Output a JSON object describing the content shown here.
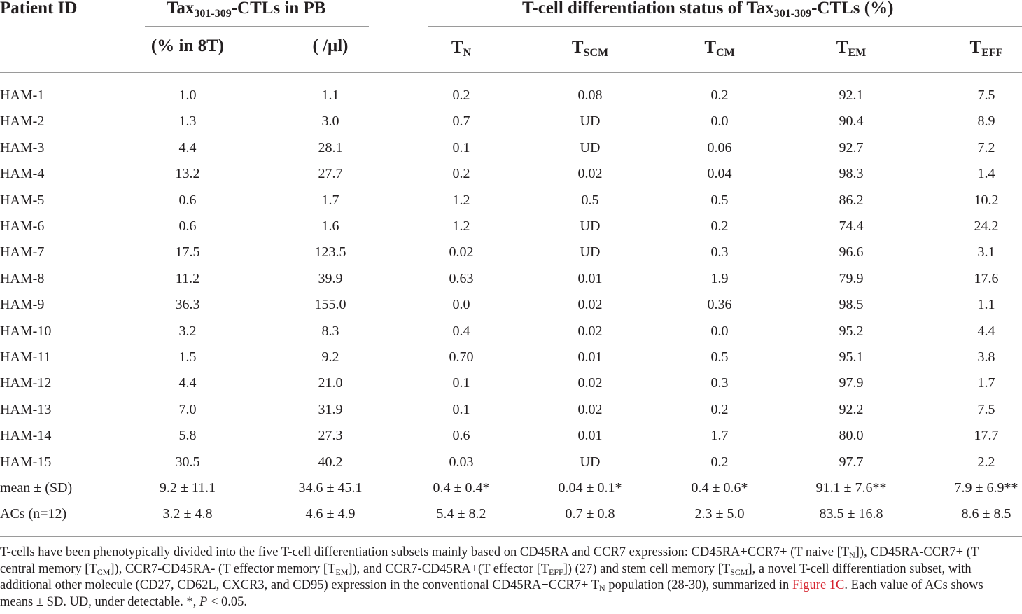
{
  "table": {
    "header": {
      "patient_id": "Patient ID",
      "ctl_group": {
        "pre": "Tax",
        "sub": "301-309",
        "post": "-CTLs in PB"
      },
      "diff_group": {
        "pre": "T-cell differentiation status of Tax",
        "sub": "301-309",
        "post": "-CTLs (%)"
      },
      "columns": [
        {
          "main": "(% in 8T)",
          "sub": ""
        },
        {
          "main": "( /μl)",
          "sub": ""
        },
        {
          "main": "T",
          "sub": "N"
        },
        {
          "main": "T",
          "sub": "SCM"
        },
        {
          "main": "T",
          "sub": "CM"
        },
        {
          "main": "T",
          "sub": "EM"
        },
        {
          "main": "T",
          "sub": "EFF"
        }
      ]
    },
    "rows": [
      [
        "HAM-1",
        "1.0",
        "1.1",
        "0.2",
        "0.08",
        "0.2",
        "92.1",
        "7.5"
      ],
      [
        "HAM-2",
        "1.3",
        "3.0",
        "0.7",
        "UD",
        "0.0",
        "90.4",
        "8.9"
      ],
      [
        "HAM-3",
        "4.4",
        "28.1",
        "0.1",
        "UD",
        "0.06",
        "92.7",
        "7.2"
      ],
      [
        "HAM-4",
        "13.2",
        "27.7",
        "0.2",
        "0.02",
        "0.04",
        "98.3",
        "1.4"
      ],
      [
        "HAM-5",
        "0.6",
        "1.7",
        "1.2",
        "0.5",
        "0.5",
        "86.2",
        "10.2"
      ],
      [
        "HAM-6",
        "0.6",
        "1.6",
        "1.2",
        "UD",
        "0.2",
        "74.4",
        "24.2"
      ],
      [
        "HAM-7",
        "17.5",
        "123.5",
        "0.02",
        "UD",
        "0.3",
        "96.6",
        "3.1"
      ],
      [
        "HAM-8",
        "11.2",
        "39.9",
        "0.63",
        "0.01",
        "1.9",
        "79.9",
        "17.6"
      ],
      [
        "HAM-9",
        "36.3",
        "155.0",
        "0.0",
        "0.02",
        "0.36",
        "98.5",
        "1.1"
      ],
      [
        "HAM-10",
        "3.2",
        "8.3",
        "0.4",
        "0.02",
        "0.0",
        "95.2",
        "4.4"
      ],
      [
        "HAM-11",
        "1.5",
        "9.2",
        "0.70",
        "0.01",
        "0.5",
        "95.1",
        "3.8"
      ],
      [
        "HAM-12",
        "4.4",
        "21.0",
        "0.1",
        "0.02",
        "0.3",
        "97.9",
        "1.7"
      ],
      [
        "HAM-13",
        "7.0",
        "31.9",
        "0.1",
        "0.02",
        "0.2",
        "92.2",
        "7.5"
      ],
      [
        "HAM-14",
        "5.8",
        "27.3",
        "0.6",
        "0.01",
        "1.7",
        "80.0",
        "17.7"
      ],
      [
        "HAM-15",
        "30.5",
        "40.2",
        "0.03",
        "UD",
        "0.2",
        "97.7",
        "2.2"
      ],
      [
        "mean ± (SD)",
        "9.2 ± 11.1",
        "34.6 ± 45.1",
        "0.4 ± 0.4*",
        "0.04 ± 0.1*",
        "0.4 ± 0.6*",
        "91.1 ± 7.6**",
        "7.9 ± 6.9**"
      ],
      [
        "ACs (n=12)",
        "3.2 ± 4.8",
        "4.6 ± 4.9",
        "5.4 ± 8.2",
        "0.7 ± 0.8",
        "2.3 ± 5.0",
        "83.5 ± 16.8",
        "8.6 ± 8.5"
      ]
    ]
  },
  "footnote": {
    "line1": [
      {
        "t": "T-cells have been phenotypically divided into the five T-cell differentiation subsets mainly based on CD45RA and CCR7 expression: CD45RA+CCR7+ (T naive [T"
      },
      {
        "t": "N",
        "sub": true
      },
      {
        "t": "]), CD45RA-CCR7+ (T"
      }
    ],
    "line2": [
      {
        "t": "central memory [T"
      },
      {
        "t": "CM",
        "sub": true
      },
      {
        "t": "]), CCR7-CD45RA- (T effector memory [T"
      },
      {
        "t": "EM",
        "sub": true
      },
      {
        "t": "]), and CCR7-CD45RA+(T effector [T"
      },
      {
        "t": "EFF",
        "sub": true
      },
      {
        "t": "]) (27) and stem cell memory [T"
      },
      {
        "t": "SCM",
        "sub": true
      },
      {
        "t": "], a novel T-cell differentiation subset, with"
      }
    ],
    "line3": [
      {
        "t": "additional other molecule (CD27, CD62L, CXCR3, and CD95) expression in the conventional CD45RA+CCR7+ T"
      },
      {
        "t": "N",
        "sub": true
      },
      {
        "t": " population (28-30), summarized in "
      },
      {
        "t": "Figure 1C",
        "link": true
      },
      {
        "t": ". Each value of ACs shows"
      }
    ],
    "line4": [
      {
        "t": "means ± SD.  UD, under detectable. *, "
      },
      {
        "t": "P",
        "italic": true
      },
      {
        "t": " < 0.05."
      }
    ]
  }
}
